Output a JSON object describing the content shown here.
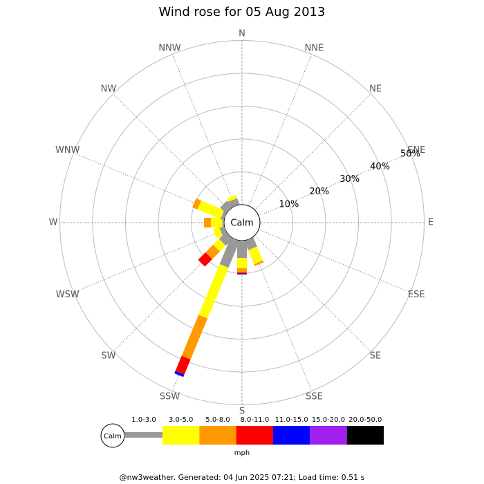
{
  "chart_data": {
    "type": "windrose",
    "title": "Wind rose for 05 Aug 2013",
    "directions": [
      "N",
      "NNE",
      "NE",
      "ENE",
      "E",
      "ESE",
      "SE",
      "SSE",
      "S",
      "SSW",
      "SW",
      "WSW",
      "W",
      "WNW",
      "NW",
      "NNW"
    ],
    "calm_label": "Calm",
    "rlim": [
      0,
      50
    ],
    "rticks": [
      {
        "value": 10,
        "label": "10%"
      },
      {
        "value": 20,
        "label": "20%"
      },
      {
        "value": 30,
        "label": "30%"
      },
      {
        "value": 40,
        "label": "40%"
      },
      {
        "value": 50,
        "label": "50%"
      }
    ],
    "series": [
      {
        "name": "1.0-3.0",
        "color": "#999999",
        "values": [
          0,
          0,
          0,
          0,
          0,
          0,
          0,
          3,
          5.3,
          8.8,
          3,
          1.5,
          0.5,
          1,
          2.5,
          2
        ]
      },
      {
        "name": "3.0-5.0",
        "color": "#ffff00",
        "values": [
          0,
          0,
          0,
          0,
          0,
          0,
          0,
          4.6,
          3.1,
          16.7,
          2.5,
          2,
          3.5,
          7.6,
          0,
          1
        ]
      },
      {
        "name": "5.0-8.0",
        "color": "#ff9900",
        "values": [
          0,
          0,
          0,
          0,
          0,
          0,
          0,
          0.6,
          1.3,
          13.5,
          3.3,
          0,
          2.1,
          1.7,
          0,
          0
        ]
      },
      {
        "name": "8.0-11.0",
        "color": "#ff0000",
        "values": [
          0,
          0,
          0,
          0,
          0,
          0,
          0,
          0,
          0.3,
          5,
          3.2,
          0,
          0,
          0,
          0,
          0
        ]
      },
      {
        "name": "11.0-15.0",
        "color": "#0000ff",
        "values": [
          0,
          0,
          0,
          0,
          0,
          0,
          0,
          0,
          0.3,
          0.8,
          0,
          0,
          0,
          0,
          0,
          0
        ]
      },
      {
        "name": "15.0-20.0",
        "color": "#a020f0",
        "values": [
          0,
          0,
          0,
          0,
          0,
          0,
          0,
          0,
          0,
          0,
          0,
          0,
          0,
          0,
          0,
          0
        ]
      },
      {
        "name": "20.0-50.0",
        "color": "#000000",
        "values": [
          0,
          0,
          0,
          0,
          0,
          0,
          0,
          0,
          0,
          0,
          0,
          0,
          0,
          0,
          0,
          0
        ]
      }
    ],
    "unit": "mph",
    "footer": "@nw3weather. Generated: 04 Jun 2025 07:21; Load time: 0.51 s"
  }
}
